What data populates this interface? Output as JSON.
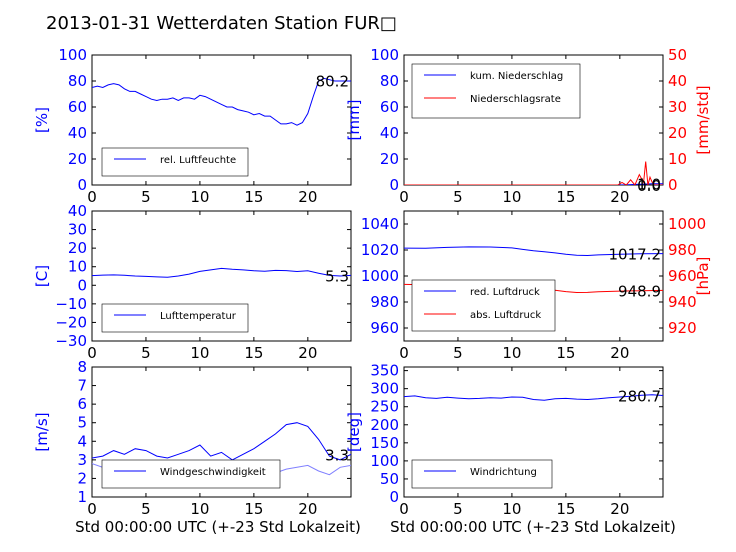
{
  "page_title": "2013-01-31 Wetterdaten Station FUR□",
  "colors": {
    "blue": "#0000ff",
    "red": "#ff0000",
    "light_blue": "#8080ff",
    "black": "#000000"
  },
  "chart_data": [
    {
      "type": "line",
      "id": "humidity",
      "ylabel": "[%]",
      "xlim": [
        0,
        24
      ],
      "ylim": [
        0,
        100
      ],
      "xticks": [
        "0",
        "5",
        "10",
        "15",
        "20"
      ],
      "yticks": [
        "0",
        "20",
        "40",
        "60",
        "80",
        "100"
      ],
      "legend": "lower-left",
      "last_value": "80.2",
      "series": [
        {
          "name": "rel. Luftfeuchte",
          "color": "#0000ff",
          "x": [
            0,
            0.5,
            1,
            1.5,
            2,
            2.5,
            3,
            3.5,
            4,
            4.5,
            5,
            5.5,
            6,
            6.5,
            7,
            7.5,
            8,
            8.5,
            9,
            9.5,
            10,
            10.5,
            11,
            11.5,
            12,
            12.5,
            13,
            13.5,
            14,
            14.5,
            15,
            15.5,
            16,
            16.5,
            17,
            17.5,
            18,
            18.5,
            19,
            19.5,
            20,
            20.5,
            21,
            21.5,
            22,
            22.5,
            23,
            23.5,
            24
          ],
          "y": [
            75,
            76,
            75,
            77,
            78,
            77,
            74,
            72,
            72,
            70,
            68,
            66,
            65,
            66,
            66,
            67,
            65,
            67,
            67,
            66,
            69,
            68,
            66,
            64,
            62,
            60,
            60,
            58,
            57,
            56,
            54,
            55,
            53,
            53,
            50,
            47,
            47,
            48,
            46,
            48,
            55,
            68,
            80,
            82,
            81,
            80,
            80,
            80,
            80
          ]
        }
      ]
    },
    {
      "type": "line",
      "id": "precipitation",
      "ylabel": "[mm]",
      "ylabel2": "[mm/std]",
      "xlim": [
        0,
        24
      ],
      "ylim": [
        0,
        100
      ],
      "ylim2": [
        0,
        50
      ],
      "xticks": [
        "0",
        "5",
        "10",
        "15",
        "20"
      ],
      "yticks": [
        "0",
        "20",
        "40",
        "60",
        "80",
        "100"
      ],
      "yticks2": [
        "0",
        "10",
        "20",
        "30",
        "40",
        "50"
      ],
      "legend": "top-left",
      "last_value": "1.0",
      "last_value2": "0.0",
      "series": [
        {
          "name": "kum. Niederschlag",
          "color": "#0000ff",
          "axis": "left",
          "x": [
            0,
            20,
            21,
            22,
            23,
            24
          ],
          "y": [
            0,
            0,
            0.3,
            0.6,
            1.0,
            1.0
          ]
        },
        {
          "name": "Niederschlagsrate",
          "color": "#ff0000",
          "axis": "right",
          "x": [
            0,
            19.8,
            20.2,
            20.6,
            21,
            21.4,
            21.8,
            22.2,
            22.4,
            22.6,
            22.8,
            23.0,
            23.2,
            23.5,
            24
          ],
          "y": [
            0,
            0,
            1,
            0,
            2,
            0,
            4,
            1,
            9,
            0,
            3,
            1,
            0,
            0,
            0
          ]
        }
      ]
    },
    {
      "type": "line",
      "id": "temperature",
      "ylabel": "[C]",
      "xlim": [
        0,
        24
      ],
      "ylim": [
        -30,
        40
      ],
      "xticks": [
        "0",
        "5",
        "10",
        "15",
        "20"
      ],
      "yticks": [
        "−30",
        "−20",
        "−10",
        "0",
        "10",
        "20",
        "30",
        "40"
      ],
      "legend": "lower-left",
      "last_value": "5.3",
      "series": [
        {
          "name": "Lufttemperatur",
          "color": "#0000ff",
          "x": [
            0,
            1,
            2,
            3,
            4,
            5,
            6,
            7,
            8,
            9,
            10,
            11,
            12,
            13,
            14,
            15,
            16,
            17,
            18,
            19,
            20,
            21,
            22,
            23,
            24
          ],
          "y": [
            5.2,
            5.5,
            5.6,
            5.4,
            5.0,
            4.8,
            4.5,
            4.3,
            5.0,
            6.0,
            7.5,
            8.3,
            9.1,
            8.6,
            8.3,
            7.8,
            7.6,
            8.0,
            7.9,
            7.4,
            7.8,
            6.5,
            5.3,
            5.0,
            5.3
          ]
        }
      ]
    },
    {
      "type": "line",
      "id": "pressure",
      "ylabel2": "[hPa]",
      "xlim": [
        0,
        24
      ],
      "ylim": [
        950,
        1050
      ],
      "ylim2": [
        910,
        1010
      ],
      "xticks": [
        "0",
        "5",
        "10",
        "15",
        "20"
      ],
      "yticks": [
        "960",
        "980",
        "1000",
        "1020",
        "1040"
      ],
      "yticks2": [
        "920",
        "940",
        "960",
        "980",
        "1000"
      ],
      "legend": "lower-left",
      "last_value": "1017.2",
      "last_value2": "948.9",
      "series": [
        {
          "name": "red. Luftdruck",
          "color": "#0000ff",
          "axis": "left",
          "x": [
            0,
            2,
            4,
            6,
            8,
            10,
            11,
            12,
            13,
            14,
            15,
            16,
            17,
            18,
            20,
            22,
            24
          ],
          "y": [
            1021.5,
            1021.3,
            1022,
            1022.4,
            1022.3,
            1021.6,
            1020.5,
            1019.5,
            1018.7,
            1017.8,
            1016.7,
            1015.9,
            1015.8,
            1016.2,
            1016.8,
            1017.1,
            1017.2
          ]
        },
        {
          "name": "abs. Luftdruck",
          "color": "#ff0000",
          "axis": "right",
          "x": [
            0,
            2,
            4,
            6,
            8,
            10,
            11,
            12,
            13,
            14,
            15,
            16,
            17,
            18,
            20,
            22,
            24
          ],
          "y": [
            953.5,
            953.3,
            953.6,
            953.9,
            953.7,
            953.2,
            952.5,
            951.2,
            950.1,
            949.1,
            948.0,
            947.3,
            947.4,
            947.9,
            948.4,
            948.7,
            948.9
          ]
        }
      ]
    },
    {
      "type": "line",
      "id": "wind_speed",
      "ylabel": "[m/s]",
      "xlim": [
        0,
        24
      ],
      "ylim": [
        1,
        8
      ],
      "xticks": [
        "0",
        "5",
        "10",
        "15",
        "20"
      ],
      "yticks": [
        "1",
        "2",
        "3",
        "4",
        "5",
        "6",
        "7",
        "8"
      ],
      "legend": "lower-right",
      "last_value": "3.3",
      "series": [
        {
          "name": "Windgeschwindigkeit",
          "color": "#0000ff",
          "x": [
            0,
            1,
            2,
            3,
            4,
            5,
            6,
            7,
            8,
            9,
            10,
            11,
            12,
            13,
            14,
            15,
            16,
            17,
            18,
            19,
            20,
            21,
            22,
            23,
            24
          ],
          "y": [
            3.1,
            3.2,
            3.5,
            3.3,
            3.6,
            3.5,
            3.2,
            3.1,
            3.3,
            3.5,
            3.8,
            3.2,
            3.4,
            3.0,
            3.3,
            3.6,
            4.0,
            4.4,
            4.9,
            5.0,
            4.8,
            4.1,
            3.2,
            3.0,
            3.3
          ]
        },
        {
          "name": "",
          "color": "#8080ff",
          "x": [
            0,
            1,
            2,
            3,
            4,
            5,
            6,
            7,
            8,
            9,
            10,
            11,
            12,
            13,
            14,
            15,
            16,
            17,
            18,
            19,
            20,
            21,
            22,
            23,
            24
          ],
          "y": [
            2.8,
            2.6,
            2.7,
            2.5,
            2.6,
            2.7,
            2.4,
            2.3,
            2.6,
            2.7,
            2.9,
            2.5,
            2.7,
            2.4,
            2.5,
            2.9,
            2.8,
            2.3,
            2.5,
            2.6,
            2.7,
            2.4,
            2.2,
            2.6,
            2.7
          ]
        }
      ]
    },
    {
      "type": "line",
      "id": "wind_direction",
      "ylabel": "[deg]",
      "xlim": [
        0,
        24
      ],
      "ylim": [
        0,
        360
      ],
      "xticks": [
        "0",
        "5",
        "10",
        "15",
        "20"
      ],
      "yticks": [
        "0",
        "50",
        "100",
        "150",
        "200",
        "250",
        "300",
        "350"
      ],
      "legend": "lower-left",
      "last_value": "280.7",
      "series": [
        {
          "name": "Windrichtung",
          "color": "#0000ff",
          "x": [
            0,
            1,
            2,
            3,
            4,
            5,
            6,
            7,
            8,
            9,
            10,
            11,
            12,
            13,
            14,
            15,
            16,
            17,
            18,
            19,
            20,
            21,
            22,
            23,
            24
          ],
          "y": [
            278,
            280,
            275,
            273,
            276,
            274,
            272,
            273,
            275,
            274,
            277,
            276,
            270,
            268,
            272,
            273,
            271,
            270,
            272,
            275,
            277,
            279,
            282,
            283,
            281
          ]
        }
      ]
    }
  ],
  "xlabel_bottom_left": "Std 00:00:00 UTC (+-23 Std Lokalzeit)",
  "xlabel_bottom_right": "Std 00:00:00 UTC (+-23 Std Lokalzeit)"
}
